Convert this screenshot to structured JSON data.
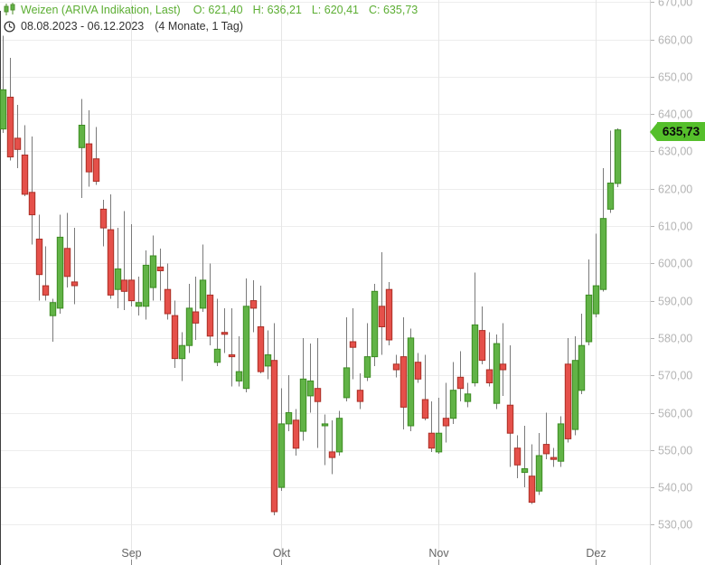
{
  "header": {
    "title": "Weizen (ARIVA Indikation, Last)",
    "ohlc": {
      "o_label": "O:",
      "o": "621,40",
      "h_label": "H:",
      "h": "636,21",
      "l_label": "L:",
      "l": "620,41",
      "c_label": "C:",
      "c": "635,73"
    },
    "date_range": "08.08.2023 - 06.12.2023",
    "period": "(4 Monate, 1 Tag)"
  },
  "price_badge": {
    "value": "635,73"
  },
  "colors": {
    "title_green": "#5cae33",
    "candle_up_fill": "#61b346",
    "candle_up_border": "#3c8c22",
    "candle_down_fill": "#e5504a",
    "candle_down_border": "#ab2f26",
    "wick": "#7a7a7a",
    "grid_h": "#ededed",
    "grid_v": "#e6e6e6",
    "axis_label": "#b4b4b4",
    "month_label": "#666666",
    "right_frame": "#d6d6d6",
    "left_axis": "#3f3f3f",
    "badge_green": "#55bf2b",
    "date_text": "#323232"
  },
  "chart_data": {
    "type": "candlestick",
    "title": "Weizen (ARIVA Indikation, Last)",
    "subtitle": "08.08.2023 - 06.12.2023 (4 Monate, 1 Tag)",
    "last_quote": {
      "open": 621.4,
      "high": 636.21,
      "low": 620.41,
      "close": 635.73
    },
    "y_axis": {
      "side": "right",
      "min": 528,
      "max": 671,
      "ticks": [
        670,
        660,
        650,
        640,
        630,
        620,
        610,
        600,
        590,
        580,
        570,
        560,
        550,
        540,
        530
      ],
      "tick_labels": [
        "670,00",
        "660,00",
        "650,00",
        "640,00",
        "630,00",
        "620,00",
        "610,00",
        "600,00",
        "590,00",
        "580,00",
        "570,00",
        "560,00",
        "550,00",
        "540,00",
        "530,00"
      ],
      "grid": true
    },
    "x_axis": {
      "unit": "1 Tag",
      "months": [
        {
          "label": "Sep",
          "index": 18
        },
        {
          "label": "Okt",
          "index": 39
        },
        {
          "label": "Nov",
          "index": 61
        },
        {
          "label": "Dez",
          "index": 83
        }
      ],
      "grid": true
    },
    "candles_format": [
      "open",
      "high",
      "low",
      "close"
    ],
    "candles": [
      [
        636,
        661,
        635,
        646.5
      ],
      [
        644.5,
        655,
        627.5,
        628.5
      ],
      [
        633.5,
        642.5,
        625.5,
        630.5
      ],
      [
        629,
        637,
        618,
        618.5
      ],
      [
        619,
        634,
        605,
        613
      ],
      [
        606.5,
        613,
        590,
        597
      ],
      [
        594,
        604.5,
        590,
        591.5
      ],
      [
        586,
        590.5,
        579,
        589.5
      ],
      [
        588,
        613,
        586.5,
        607
      ],
      [
        604,
        613.5,
        593.5,
        596.5
      ],
      [
        595,
        609.5,
        589,
        594
      ],
      [
        631,
        644,
        617.5,
        637
      ],
      [
        632,
        641,
        620.5,
        624.5
      ],
      [
        628,
        636.5,
        621,
        622
      ],
      [
        614.5,
        617,
        604.5,
        609.5
      ],
      [
        609,
        618.5,
        590.5,
        591.5
      ],
      [
        593,
        609.5,
        588,
        598.5
      ],
      [
        595.5,
        614,
        587.5,
        592.5
      ],
      [
        595.5,
        610.5,
        588.5,
        590
      ],
      [
        588.5,
        596.5,
        586,
        589.5
      ],
      [
        588.5,
        603.5,
        585,
        599.5
      ],
      [
        593.5,
        607.5,
        590,
        602
      ],
      [
        599,
        604,
        590,
        598
      ],
      [
        593,
        600,
        585,
        586.5
      ],
      [
        586,
        590,
        572,
        574.5
      ],
      [
        574.5,
        581.5,
        568.5,
        578
      ],
      [
        578,
        594.5,
        576,
        588
      ],
      [
        587,
        596.5,
        579.5,
        584
      ],
      [
        588,
        605,
        587,
        595.5
      ],
      [
        591.5,
        600,
        578,
        580.5
      ],
      [
        573.5,
        590.5,
        572.5,
        577
      ],
      [
        581.5,
        588,
        576,
        581
      ],
      [
        575.5,
        588,
        567,
        575
      ],
      [
        568.5,
        580.5,
        567,
        571
      ],
      [
        566.5,
        596,
        565.5,
        588.5
      ],
      [
        590,
        595.5,
        581.5,
        588
      ],
      [
        583,
        594,
        570.5,
        571
      ],
      [
        572.5,
        582,
        569,
        575.5
      ],
      [
        574,
        584,
        532.5,
        533.5
      ],
      [
        540,
        566.5,
        539,
        557
      ],
      [
        557,
        570,
        555,
        560
      ],
      [
        558,
        561,
        548.5,
        550.5
      ],
      [
        555,
        580,
        552.5,
        569
      ],
      [
        564.5,
        578.5,
        560,
        568.5
      ],
      [
        566.5,
        580,
        550.5,
        563
      ],
      [
        556.5,
        559.5,
        546,
        557
      ],
      [
        549.5,
        558,
        543.5,
        548
      ],
      [
        549.5,
        560.5,
        548.5,
        558.5
      ],
      [
        564,
        585.5,
        563,
        572
      ],
      [
        579,
        588,
        569,
        577.5
      ],
      [
        566,
        570.5,
        561,
        563
      ],
      [
        569.5,
        584,
        568.5,
        575
      ],
      [
        575,
        594.5,
        572.5,
        592.5
      ],
      [
        588.5,
        603,
        575.5,
        583
      ],
      [
        593,
        595,
        578,
        579.5
      ],
      [
        573,
        575.5,
        569.5,
        571.5
      ],
      [
        575,
        585.5,
        555.5,
        561.5
      ],
      [
        556.5,
        582.5,
        555,
        580
      ],
      [
        573.5,
        576,
        568,
        569
      ],
      [
        563.5,
        575.5,
        558,
        558.5
      ],
      [
        554.5,
        563,
        549.5,
        550.5
      ],
      [
        549.5,
        564,
        549,
        554.5
      ],
      [
        558.5,
        568,
        552,
        556.5
      ],
      [
        558.5,
        573.5,
        557,
        566
      ],
      [
        569.5,
        576.5,
        563,
        566.5
      ],
      [
        563,
        568,
        561.5,
        565
      ],
      [
        568,
        597.5,
        567,
        583.5
      ],
      [
        582,
        588.5,
        573,
        574
      ],
      [
        571.5,
        581.5,
        567,
        568
      ],
      [
        562.5,
        581,
        561,
        578.5
      ],
      [
        573,
        584,
        564.5,
        571.5
      ],
      [
        562,
        578,
        545.5,
        554.5
      ],
      [
        550.5,
        554,
        542.5,
        546
      ],
      [
        544,
        556.5,
        540,
        545
      ],
      [
        543,
        551.5,
        535.5,
        536
      ],
      [
        539,
        554.5,
        538,
        548.5
      ],
      [
        551.5,
        560,
        547.5,
        549
      ],
      [
        548,
        550.5,
        545.5,
        547.5
      ],
      [
        547,
        559,
        545.5,
        557
      ],
      [
        573,
        580,
        552,
        553
      ],
      [
        555.5,
        580.5,
        554,
        574
      ],
      [
        566,
        586.5,
        565,
        578
      ],
      [
        579,
        601,
        578,
        591.5
      ],
      [
        586.5,
        608,
        585.5,
        594
      ],
      [
        593,
        625.5,
        592.5,
        612
      ],
      [
        614.5,
        635.5,
        613.5,
        621.5
      ],
      [
        621.4,
        636.21,
        620.41,
        635.73
      ]
    ]
  }
}
